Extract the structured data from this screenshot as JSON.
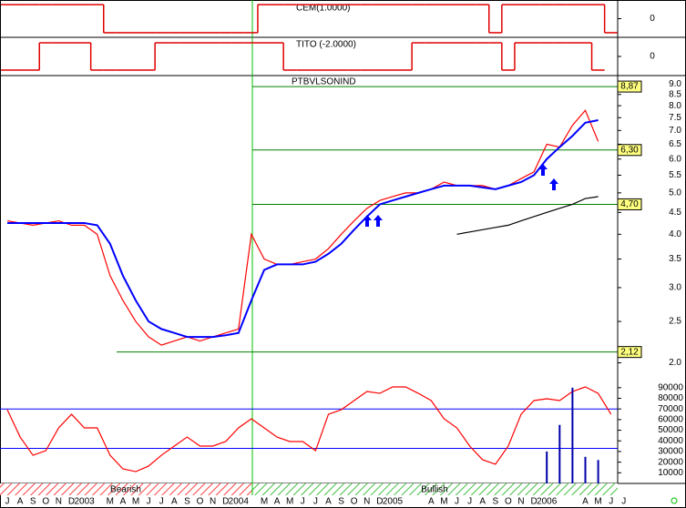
{
  "chart_data": [
    {
      "type": "line",
      "title": "CEM(1.0000)",
      "step": true,
      "ylim": [
        -1.2,
        1.2
      ],
      "yticks": [
        0
      ],
      "series": [
        {
          "color": "#e00000",
          "values": [
            1,
            1,
            1,
            1,
            1,
            1,
            1,
            1,
            -1,
            -1,
            -1,
            -1,
            -1,
            -1,
            -1,
            -1,
            -1,
            -1,
            -1,
            -1,
            1,
            1,
            1,
            1,
            1,
            1,
            1,
            1,
            1,
            1,
            1,
            1,
            1,
            1,
            1,
            1,
            1,
            1,
            -1,
            1,
            1,
            1,
            1,
            1,
            1,
            1,
            1,
            -1,
            null
          ]
        }
      ]
    },
    {
      "type": "line",
      "title": "TITO (-2.0000)",
      "step": true,
      "ylim": [
        -1.2,
        1.2
      ],
      "yticks": [
        0
      ],
      "series": [
        {
          "color": "#e00000",
          "values": [
            -1,
            -1,
            -1,
            1,
            1,
            1,
            1,
            -1,
            -1,
            -1,
            -1,
            -1,
            1,
            1,
            1,
            1,
            1,
            1,
            1,
            1,
            1,
            1,
            -1,
            -1,
            -1,
            -1,
            -1,
            -1,
            -1,
            -1,
            -1,
            -1,
            1,
            1,
            1,
            1,
            1,
            1,
            1,
            -1,
            1,
            1,
            1,
            1,
            1,
            1,
            -1,
            null,
            null
          ]
        }
      ]
    },
    {
      "type": "line",
      "title": "PTBVLSONIND",
      "log_scale": true,
      "ylim": [
        1.8,
        9.32
      ],
      "yticks": [
        {
          "value": 9,
          "label": "9.0"
        },
        8.5,
        {
          "value": 8,
          "label": "8.0"
        },
        7.5,
        {
          "value": 7,
          "label": "7.0"
        },
        6.5,
        {
          "value": 6,
          "label": "6.0"
        },
        5.5,
        {
          "value": 5,
          "label": "5.0"
        },
        4.5,
        {
          "value": 4,
          "label": "4.0"
        },
        3.5,
        {
          "value": 3,
          "label": "3.0"
        },
        2.5,
        {
          "value": 2,
          "label": "2.0"
        }
      ],
      "levels": [
        {
          "value": 8.87,
          "label": "8,87"
        },
        {
          "value": 6.3,
          "label": "6,30"
        },
        {
          "value": 4.7,
          "label": "4,70"
        },
        {
          "value": 2.12,
          "label": "2,12"
        }
      ],
      "series": [
        {
          "color": "#ff0000",
          "values": [
            4.3,
            4.25,
            4.2,
            4.25,
            4.3,
            4.2,
            4.2,
            4.0,
            3.2,
            2.8,
            2.5,
            2.3,
            2.2,
            2.25,
            2.3,
            2.25,
            2.3,
            2.35,
            2.4,
            4.0,
            3.5,
            3.4,
            3.4,
            3.45,
            3.5,
            3.7,
            4.0,
            4.3,
            4.6,
            4.8,
            4.9,
            5.0,
            5.0,
            5.1,
            5.3,
            5.2,
            5.2,
            5.2,
            5.1,
            5.2,
            5.4,
            5.6,
            6.5,
            6.4,
            7.2,
            7.8,
            6.6,
            null,
            null
          ]
        },
        {
          "color": "#0000ff",
          "values": [
            4.25,
            4.25,
            4.25,
            4.25,
            4.25,
            4.25,
            4.25,
            4.2,
            3.8,
            3.2,
            2.8,
            2.5,
            2.4,
            2.35,
            2.3,
            2.3,
            2.3,
            2.32,
            2.35,
            2.8,
            3.3,
            3.4,
            3.4,
            3.4,
            3.45,
            3.6,
            3.8,
            4.1,
            4.4,
            4.7,
            4.8,
            4.9,
            5.0,
            5.1,
            5.2,
            5.2,
            5.2,
            5.15,
            5.1,
            5.2,
            5.3,
            5.5,
            6.0,
            6.4,
            6.8,
            7.3,
            7.4,
            null,
            null
          ]
        },
        {
          "color": "#000000",
          "values": [
            null,
            null,
            null,
            null,
            null,
            null,
            null,
            null,
            null,
            null,
            null,
            null,
            null,
            null,
            null,
            null,
            null,
            null,
            null,
            null,
            null,
            null,
            null,
            null,
            null,
            null,
            null,
            null,
            null,
            null,
            null,
            null,
            null,
            null,
            null,
            4.0,
            4.05,
            4.1,
            4.15,
            4.2,
            4.3,
            4.4,
            4.5,
            4.6,
            4.7,
            4.85,
            4.9,
            null,
            null
          ]
        }
      ]
    },
    {
      "type": "line",
      "ylim": [
        0,
        95000
      ],
      "yticks": [
        90000,
        80000,
        70000,
        60000,
        50000,
        40000,
        30000,
        20000,
        10000
      ],
      "levels": [
        70000,
        33000
      ],
      "bands": [
        "Bearish",
        "Bullish"
      ],
      "categories": [
        "J",
        "A",
        "S",
        "O",
        "N",
        "D",
        "2003",
        null,
        "M",
        "A",
        "M",
        "J",
        "J",
        "A",
        "S",
        "O",
        "N",
        "D",
        "2004",
        null,
        "M",
        "A",
        "M",
        "J",
        "J",
        "A",
        "S",
        "O",
        "N",
        "D",
        "2005",
        null,
        null,
        "A",
        "M",
        "J",
        "J",
        "A",
        "S",
        "O",
        "N",
        "D",
        "2006",
        null,
        null,
        "A",
        "M",
        "J",
        "J"
      ],
      "series": [
        {
          "color": "#ff0000",
          "values": [
            69300,
            43600,
            26500,
            30800,
            52200,
            65000,
            52200,
            52200,
            26500,
            13700,
            11100,
            16300,
            26500,
            35100,
            43600,
            35100,
            35100,
            39400,
            52200,
            60800,
            52200,
            43600,
            39400,
            39400,
            30800,
            65000,
            69300,
            77900,
            86400,
            84700,
            90700,
            90700,
            84700,
            77900,
            60800,
            52200,
            35100,
            22300,
            18000,
            35100,
            65000,
            77900,
            79600,
            77900,
            86400,
            90700,
            84700,
            65000,
            null
          ]
        },
        {
          "type": "bar",
          "color": "#0000aa",
          "values": [
            null,
            null,
            null,
            null,
            null,
            null,
            null,
            null,
            null,
            null,
            null,
            null,
            null,
            null,
            null,
            null,
            null,
            null,
            null,
            null,
            null,
            null,
            null,
            null,
            null,
            null,
            null,
            null,
            null,
            null,
            null,
            null,
            null,
            null,
            null,
            null,
            null,
            null,
            null,
            null,
            null,
            null,
            30000,
            55000,
            90000,
            25000,
            22000,
            null,
            null
          ]
        }
      ]
    }
  ]
}
